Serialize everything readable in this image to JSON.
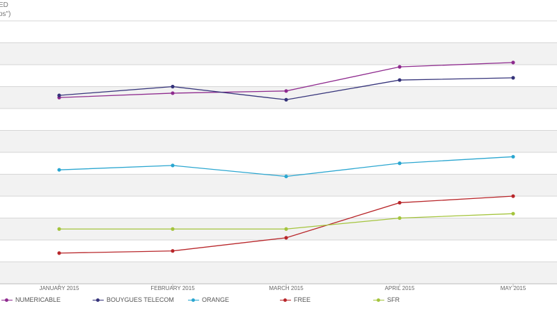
{
  "chart_data": {
    "type": "line",
    "title": "",
    "ylabel_lines": [
      "ED",
      "ps\")"
    ],
    "xlabel": "",
    "categories": [
      "JANUARY 2015",
      "FEBRUARY 2015",
      "MARCH 2015",
      "APRIL 2015",
      "MAY 2015"
    ],
    "ylim": [
      0,
      12
    ],
    "grid": true,
    "legend_position": "bottom",
    "series": [
      {
        "name": "NUMERICABLE",
        "color": "#8e2a8e",
        "values": [
          8.5,
          8.7,
          8.8,
          9.9,
          10.1
        ]
      },
      {
        "name": "BOUYGUES TELECOM",
        "color": "#35337a",
        "values": [
          8.6,
          9.0,
          8.4,
          9.3,
          9.4
        ]
      },
      {
        "name": "ORANGE",
        "color": "#2aa6d0",
        "values": [
          5.2,
          5.4,
          4.9,
          5.5,
          5.8
        ]
      },
      {
        "name": "FREE",
        "color": "#b8262a",
        "values": [
          1.4,
          1.5,
          2.1,
          3.7,
          4.0
        ]
      },
      {
        "name": "SFR",
        "color": "#a4c43c",
        "values": [
          2.5,
          2.5,
          2.5,
          3.0,
          3.2
        ]
      }
    ]
  }
}
